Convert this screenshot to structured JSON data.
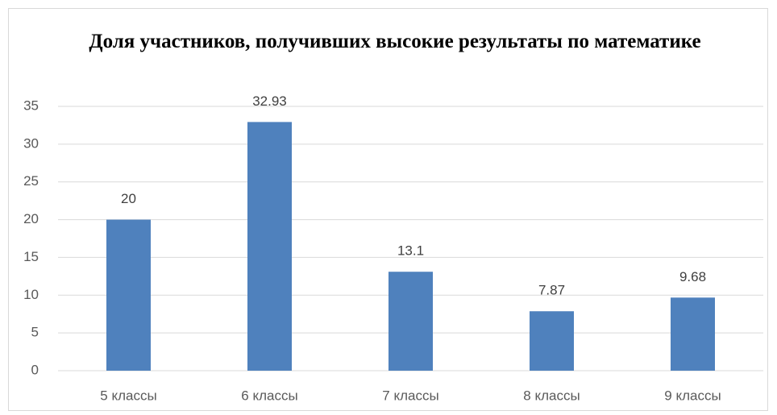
{
  "chart_data": {
    "type": "bar",
    "title": "Доля участников, получивших высокие результаты по математике",
    "categories": [
      "5 классы",
      "6 классы",
      "7 классы",
      "8 классы",
      "9 классы"
    ],
    "values": [
      20,
      32.93,
      13.1,
      7.87,
      9.68
    ],
    "color": "#4f81bd",
    "ylim": [
      0,
      35
    ],
    "yticks": [
      0,
      5,
      10,
      15,
      20,
      25,
      30,
      35
    ],
    "grid": true
  }
}
